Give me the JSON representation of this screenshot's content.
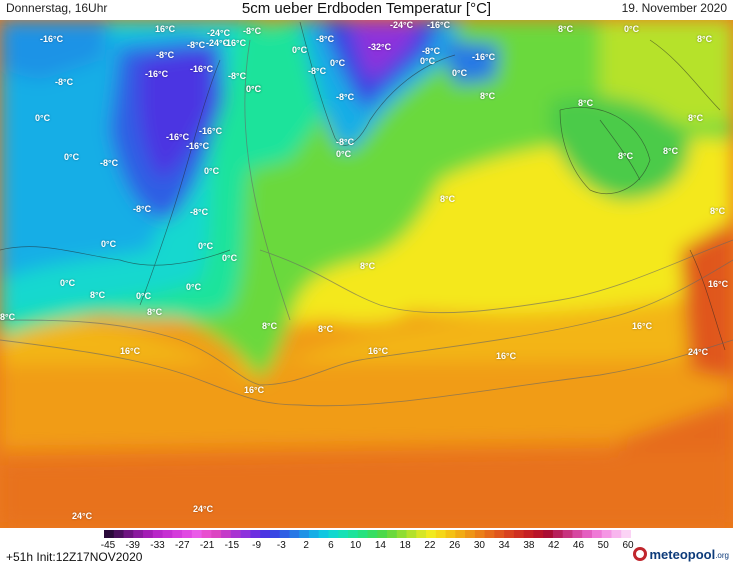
{
  "header": {
    "left": "Donnerstag, 16Uhr",
    "title": "5cm ueber Erdboden Temperatur [°C]",
    "right": "19. November 2020"
  },
  "map": {
    "labels": [
      "-16°C",
      "16°C",
      "-24°C",
      "-8°C",
      "-8°C",
      "-24°C",
      "-16°C",
      "-16°C",
      "-8°C",
      "-16°C",
      "-8°C",
      "0°C",
      "0°C",
      "-8°C",
      "-24°C",
      "-32°C",
      "-8°C",
      "0°C",
      "-8°C",
      "-16°C",
      "0°C",
      "8°C",
      "0°C",
      "8°C",
      "0°C",
      "-16°C",
      "8°C",
      "-8°C",
      "-8°C",
      "-16°C",
      "-16°C",
      "-16°C",
      "0°C",
      "8°C",
      "-8°C",
      "0°C",
      "-8°C",
      "0°C",
      "0°C",
      "8°C",
      "-8°C",
      "-8°C",
      "8°C",
      "0°C",
      "0°C",
      "0°C",
      "8°C",
      "0°C",
      "8°C",
      "0°C",
      "8°C",
      "0°C",
      "16°C",
      "8°C",
      "8°C",
      "8°C",
      "16°C",
      "16°C",
      "16°C",
      "16°C",
      "24°C",
      "16°C",
      "24°C",
      "24°C",
      "0°C",
      "8°C",
      "8°C",
      "8°C"
    ]
  },
  "legend": {
    "ticks": [
      "-45",
      "-39",
      "-33",
      "-27",
      "-21",
      "-15",
      "-9",
      "-3",
      "2",
      "6",
      "10",
      "14",
      "18",
      "22",
      "26",
      "30",
      "34",
      "38",
      "42",
      "46",
      "50",
      "60"
    ],
    "colors": [
      "#2a0a3a",
      "#4a0f5c",
      "#6d1480",
      "#8a1a9e",
      "#a31db5",
      "#b826c8",
      "#c62fd2",
      "#d43bdb",
      "#e048e2",
      "#ea5ae8",
      "#e84ecf",
      "#dc45c2",
      "#c43bc9",
      "#a935d2",
      "#8d32dc",
      "#6d2fe0",
      "#4b34e2",
      "#3846e3",
      "#2f5fe4",
      "#2878e5",
      "#1f93e6",
      "#16aee6",
      "#10c7e1",
      "#12d8cf",
      "#16e1b6",
      "#1de39b",
      "#25e27f",
      "#36de62",
      "#4cd94a",
      "#6bd93c",
      "#8fdd33",
      "#b3e12c",
      "#d6e626",
      "#f1ea1f",
      "#f5d718",
      "#f4c114",
      "#f1ab14",
      "#ee9516",
      "#eb7f18",
      "#e66a1a",
      "#e0561c",
      "#d8421e",
      "#cf3020",
      "#c52022",
      "#b91428",
      "#aa0d33",
      "#b71f5a",
      "#c7337e",
      "#d648a1",
      "#e45ec0",
      "#ef79d6",
      "#f596e4",
      "#f8b5ee",
      "#fbd3f5"
    ]
  },
  "footer": {
    "run_info": "+51h Init:12Z17NOV2020",
    "brand_main": "meteopool",
    "brand_tld": ".org"
  }
}
